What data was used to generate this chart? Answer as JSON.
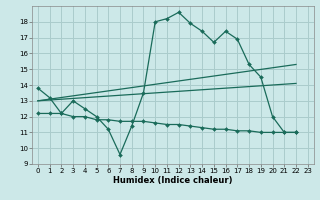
{
  "title": "",
  "xlabel": "Humidex (Indice chaleur)",
  "background_color": "#cce8e8",
  "grid_color": "#aacccc",
  "line_color": "#1a6b5a",
  "xlim": [
    -0.5,
    23.5
  ],
  "ylim": [
    9,
    19
  ],
  "xticks": [
    0,
    1,
    2,
    3,
    4,
    5,
    6,
    7,
    8,
    9,
    10,
    11,
    12,
    13,
    14,
    15,
    16,
    17,
    18,
    19,
    20,
    21,
    22,
    23
  ],
  "yticks": [
    9,
    10,
    11,
    12,
    13,
    14,
    15,
    16,
    17,
    18
  ],
  "series1_x": [
    0,
    1,
    2,
    3,
    4,
    5,
    6,
    7,
    8,
    9,
    10,
    11,
    12,
    13,
    14,
    15,
    16,
    17,
    18,
    19,
    20,
    21,
    22
  ],
  "series1_y": [
    13.8,
    13.2,
    12.2,
    13.0,
    12.5,
    12.0,
    11.2,
    9.6,
    11.4,
    13.5,
    18.0,
    18.2,
    18.6,
    17.9,
    17.4,
    16.7,
    17.4,
    16.9,
    15.3,
    14.5,
    12.0,
    11.0,
    11.0
  ],
  "series2_x": [
    0,
    1,
    2,
    3,
    4,
    5,
    6,
    7,
    8,
    9,
    10,
    11,
    12,
    13,
    14,
    15,
    16,
    17,
    18,
    19,
    20,
    21,
    22
  ],
  "series2_y": [
    12.2,
    12.2,
    12.2,
    12.0,
    12.0,
    11.8,
    11.8,
    11.7,
    11.7,
    11.7,
    11.6,
    11.5,
    11.5,
    11.4,
    11.3,
    11.2,
    11.2,
    11.1,
    11.1,
    11.0,
    11.0,
    11.0,
    11.0
  ],
  "trend1_x": [
    0,
    22
  ],
  "trend1_y": [
    13.0,
    15.3
  ],
  "trend2_x": [
    0,
    22
  ],
  "trend2_y": [
    13.0,
    14.1
  ],
  "xlabel_fontsize": 6,
  "tick_fontsize": 5
}
